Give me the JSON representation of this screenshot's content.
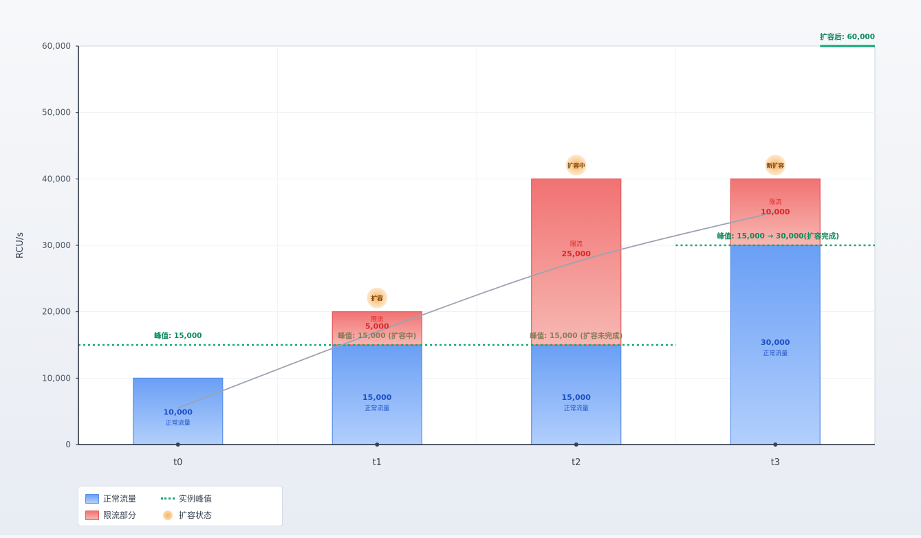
{
  "chart_data": {
    "type": "bar",
    "ylabel": "RCU/s",
    "ylim": [
      0,
      60000
    ],
    "yticks": [
      {
        "value": 0,
        "label": "0"
      },
      {
        "value": 10000,
        "label": "10,000"
      },
      {
        "value": 20000,
        "label": "20,000"
      },
      {
        "value": 30000,
        "label": "30,000"
      },
      {
        "value": 40000,
        "label": "40,000"
      },
      {
        "value": 50000,
        "label": "50,000"
      },
      {
        "value": 60000,
        "label": "60,000"
      }
    ],
    "categories": [
      "t0",
      "t1",
      "t2",
      "t3"
    ],
    "stacked": true,
    "series": [
      {
        "name": "正常流量",
        "color": "#5b8fe8",
        "values": [
          10000,
          15000,
          15000,
          30000
        ],
        "value_labels": [
          "10,000",
          "15,000",
          "15,000",
          "30,000"
        ],
        "sub_labels": [
          "正常流量",
          "正常流量",
          "正常流量",
          "正常流量"
        ]
      },
      {
        "name": "限流部分",
        "color": "#e35a5a",
        "values": [
          0,
          5000,
          25000,
          10000
        ],
        "value_labels": [
          "",
          "5,000",
          "25,000",
          "10,000"
        ],
        "sub_labels": [
          "",
          "限流",
          "限流",
          "限流"
        ]
      }
    ],
    "trend_line": {
      "color": "#9ca3af",
      "points": [
        {
          "x": "t0",
          "y": 5500
        },
        {
          "x": "t1",
          "y": 17000
        },
        {
          "x": "t2",
          "y": 27500
        },
        {
          "x": "t3",
          "y": 35000
        }
      ]
    },
    "peak_lines": [
      {
        "value": 15000,
        "from": "t0",
        "to": "t2",
        "color": "#10a874"
      },
      {
        "value": 30000,
        "from": "t3",
        "to": "t3",
        "color": "#10a874"
      },
      {
        "value": 60000,
        "from": "t3",
        "to": "t3",
        "color": "#10a874"
      }
    ],
    "peak_annotations": [
      {
        "category": "t0",
        "value": 15000,
        "text": "峰值: 15,000",
        "color": "#0f8a5f"
      },
      {
        "category": "t1",
        "value": 15000,
        "text": "峰值: 15,000 (扩容中)",
        "color": "#8a7a58"
      },
      {
        "category": "t2",
        "value": 15000,
        "text": "峰值: 15,000 (扩容未完成)",
        "color": "#8a7a58"
      },
      {
        "category": "t3",
        "value": 30000,
        "text": "峰值: 15,000 → 30,000(扩容完成)",
        "color": "#0f8a5f"
      },
      {
        "category": "t3",
        "value": 60000,
        "text": "扩容后: 60,000",
        "color": "#0f8a5f"
      }
    ],
    "scaling_badges": [
      {
        "category": "t1",
        "value": 20000,
        "text": "扩容"
      },
      {
        "category": "t2",
        "value": 40000,
        "text": "扩容中"
      },
      {
        "category": "t3",
        "value": 40000,
        "text": "新扩容"
      }
    ],
    "grid": true,
    "legend": {
      "position": "bottom-left",
      "items": [
        {
          "label": "正常流量",
          "kind": "normal"
        },
        {
          "label": "实例峰值",
          "kind": "peak"
        },
        {
          "label": "限流部分",
          "kind": "limit"
        },
        {
          "label": "扩容状态",
          "kind": "scale"
        }
      ]
    }
  }
}
